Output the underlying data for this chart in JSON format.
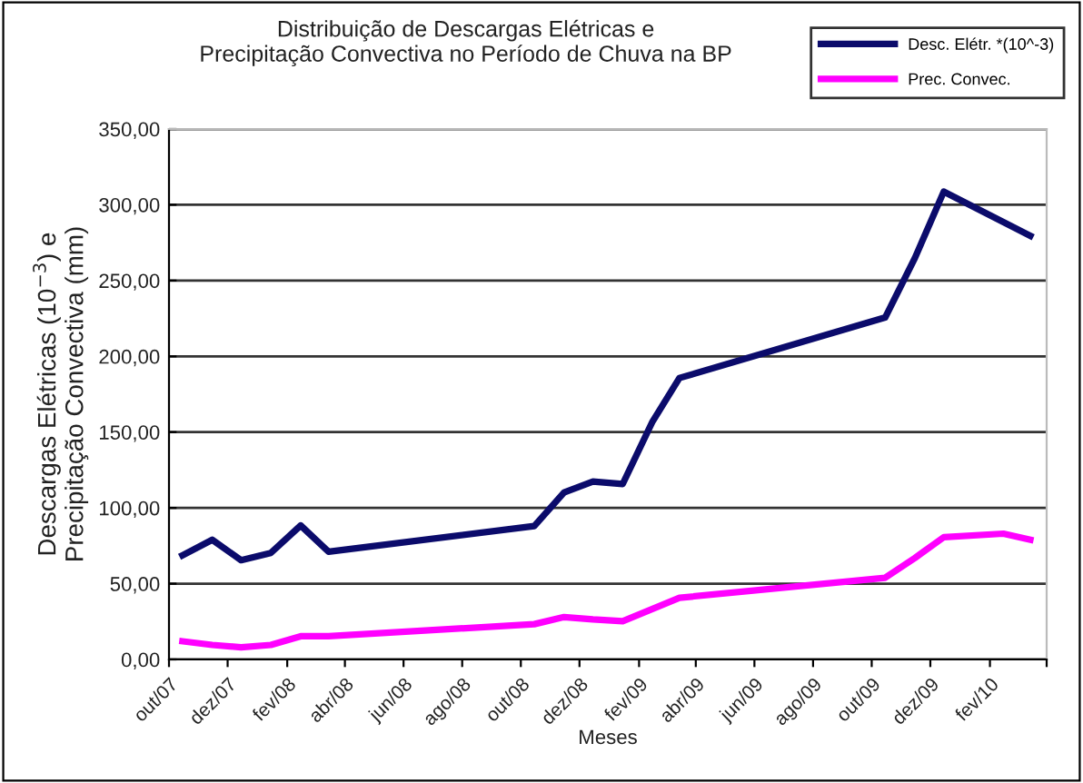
{
  "chart_data": {
    "type": "line",
    "title": "Distribuição de Descargas Elétricas e\nPrecipitação Convectiva no Período de Chuva na BP",
    "xlabel": "Meses",
    "ylabel": "Descargas Elétricas (10$^{−3}$) e\nPrecipitação Convectiva (mm)",
    "series": [
      {
        "name": "Desc. Elétr. *(10^-3)",
        "color": "#0b0b6b",
        "x": [
          "2007-10-15",
          "2007-11-15",
          "2007-12-15",
          "2008-01-15",
          "2008-02-15",
          "2008-03-15",
          "2008-10-15",
          "2008-11-15",
          "2008-12-15",
          "2009-01-15",
          "2009-02-15",
          "2009-03-15",
          "2009-10-15",
          "2009-11-15",
          "2009-12-15",
          "2010-03-15"
        ],
        "values": [
          68.7,
          79,
          65.5,
          70.3,
          88.4,
          71.1,
          88,
          110.2,
          117.4,
          115.8,
          157,
          185.7,
          225.6,
          265,
          308.7,
          279.5
        ]
      },
      {
        "name": "Prec. Convec.",
        "color": "#ff00ff",
        "x": [
          "2007-10-15",
          "2007-11-15",
          "2007-12-15",
          "2008-01-15",
          "2008-02-15",
          "2008-03-15",
          "2008-10-15",
          "2008-11-15",
          "2008-12-15",
          "2009-01-15",
          "2009-03-15",
          "2009-10-15",
          "2009-11-15",
          "2009-12-15",
          "2010-02-15",
          "2010-03-15"
        ],
        "values": [
          12,
          9.6,
          8,
          9.6,
          15.3,
          15.3,
          23.3,
          28,
          26.4,
          25.2,
          40.7,
          53.9,
          67,
          80.7,
          83,
          79
        ]
      }
    ],
    "xlim": [
      "2007-10",
      "2010-04"
    ],
    "xticks": [
      {
        "value": "2007-10",
        "label": "out/07"
      },
      {
        "value": "2007-12",
        "label": "dez/07"
      },
      {
        "value": "2008-02",
        "label": "fev/08"
      },
      {
        "value": "2008-04",
        "label": "abr/08"
      },
      {
        "value": "2008-06",
        "label": "jun/08"
      },
      {
        "value": "2008-08",
        "label": "ago/08"
      },
      {
        "value": "2008-10",
        "label": "out/08"
      },
      {
        "value": "2008-12",
        "label": "dez/08"
      },
      {
        "value": "2009-02",
        "label": "fev/09"
      },
      {
        "value": "2009-04",
        "label": "abr/09"
      },
      {
        "value": "2009-06",
        "label": "jun/09"
      },
      {
        "value": "2009-08",
        "label": "ago/09"
      },
      {
        "value": "2009-10",
        "label": "out/09"
      },
      {
        "value": "2009-12",
        "label": "dez/09"
      },
      {
        "value": "2010-02",
        "label": "fev/10"
      },
      {
        "value": "2010-04",
        "label": null
      }
    ],
    "ylim": [
      0,
      350
    ],
    "yticks": [
      {
        "value": 0,
        "label": "0,00"
      },
      {
        "value": 50,
        "label": "50,00"
      },
      {
        "value": 100,
        "label": "100,00"
      },
      {
        "value": 150,
        "label": "150,00"
      },
      {
        "value": 200,
        "label": "200,00"
      },
      {
        "value": 250,
        "label": "250,00"
      },
      {
        "value": 300,
        "label": "300,00"
      },
      {
        "value": 350,
        "label": "350,00"
      }
    ],
    "grid": "y",
    "legend": "top right",
    "marker": "none",
    "line_style": "solid"
  }
}
